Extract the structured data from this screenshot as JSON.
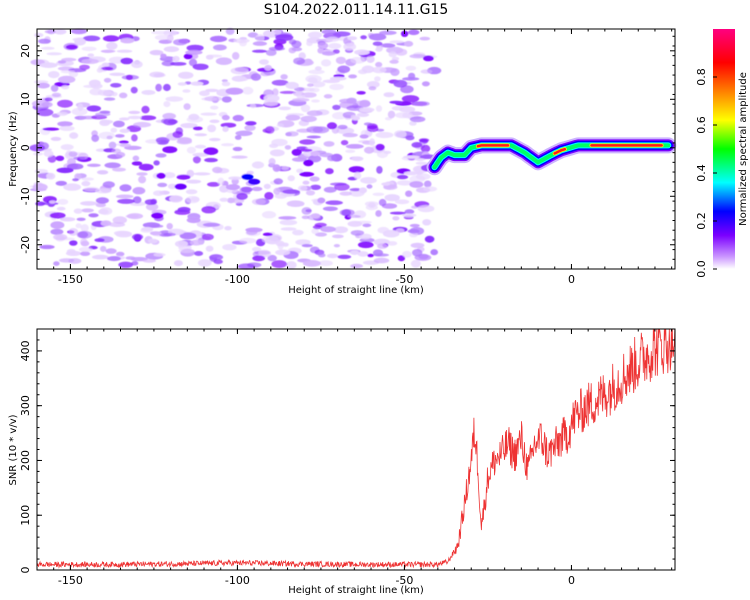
{
  "title": "S104.2022.011.14.11.G15",
  "chart_data": [
    {
      "type": "heatmap",
      "xlabel": "Height of straight line (km)",
      "ylabel": "Frequency (Hz)",
      "xlim": [
        -160,
        31
      ],
      "ylim": [
        -25,
        24.5
      ],
      "xticks": [
        -150,
        -100,
        -50,
        0
      ],
      "yticks": [
        -20,
        -10,
        0,
        10,
        20
      ],
      "noise_region_x": [
        -160,
        -41
      ],
      "ridge": {
        "x": [
          -41,
          -39,
          -37,
          -35,
          -32,
          -30,
          -27,
          -22,
          -18,
          -14,
          -10,
          -6,
          -3,
          2,
          8,
          15,
          22,
          29
        ],
        "y": [
          -4,
          -2,
          -1,
          -1.5,
          -1.5,
          0,
          0.5,
          0.5,
          0.5,
          -1,
          -3,
          -1.5,
          -0.5,
          0.5,
          0.5,
          0.5,
          0.5,
          0.5
        ]
      },
      "colorbar": {
        "label": "Normalized spectral amplitude",
        "range": [
          0.0,
          1.0
        ],
        "ticks": [
          0.0,
          0.2,
          0.4,
          0.6,
          0.8
        ]
      },
      "colormap": [
        "#ffffff",
        "#7b00ff",
        "#0000ff",
        "#00ffff",
        "#00ff00",
        "#ffff00",
        "#ff8000",
        "#ff0000",
        "#ff0080"
      ]
    },
    {
      "type": "line",
      "xlabel": "Height of straight line (km)",
      "ylabel": "SNR (10 * v/v)",
      "xlim": [
        -160,
        31
      ],
      "ylim": [
        0,
        440
      ],
      "xticks": [
        -150,
        -100,
        -50,
        0
      ],
      "yticks": [
        0,
        100,
        200,
        300,
        400
      ],
      "color": "#ee3333",
      "series": [
        {
          "x": [
            -160,
            -140,
            -120,
            -100,
            -80,
            -60,
            -40,
            -37,
            -34,
            -32,
            -30,
            -29,
            -28,
            -27,
            -26,
            -25,
            -23,
            -21,
            -19,
            -17,
            -15,
            -13,
            -11,
            -9,
            -7,
            -5,
            -3,
            -1,
            1,
            5,
            10,
            15,
            20,
            25,
            30
          ],
          "values": [
            10,
            10,
            11,
            13,
            11,
            10,
            10,
            15,
            45,
            120,
            200,
            255,
            190,
            80,
            120,
            170,
            200,
            210,
            230,
            210,
            240,
            180,
            230,
            240,
            210,
            225,
            240,
            250,
            280,
            300,
            320,
            350,
            380,
            405,
            420
          ]
        }
      ]
    }
  ]
}
